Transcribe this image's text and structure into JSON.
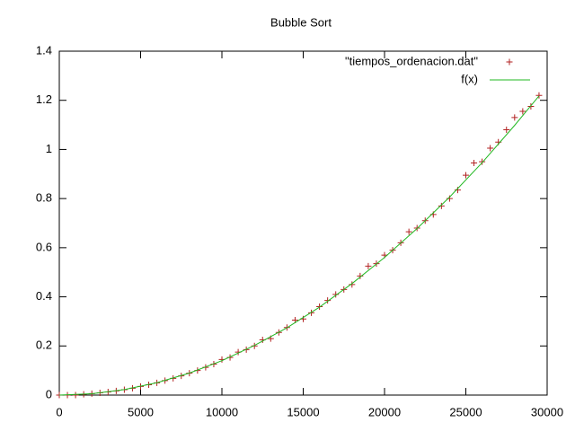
{
  "chart_data": {
    "type": "scatter",
    "title": "Bubble Sort",
    "xlim": [
      0,
      30000
    ],
    "ylim": [
      0,
      1.4
    ],
    "xticks": [
      0,
      5000,
      10000,
      15000,
      20000,
      25000,
      30000
    ],
    "yticks": [
      0,
      0.2,
      0.4,
      0.6,
      0.8,
      1,
      1.2,
      1.4
    ],
    "legend": "top-right",
    "series": [
      {
        "name": "\"tiempos_ordenacion.dat\"",
        "color": "#b22222",
        "style": "points",
        "x": [
          0,
          500,
          1000,
          1500,
          2000,
          2500,
          3000,
          3500,
          4000,
          4500,
          5000,
          5500,
          6000,
          6500,
          7000,
          7500,
          8000,
          8500,
          9000,
          9500,
          10000,
          10500,
          11000,
          11500,
          12000,
          12500,
          13000,
          13500,
          14000,
          14500,
          15000,
          15500,
          16000,
          16500,
          17000,
          17500,
          18000,
          18500,
          19000,
          19500,
          20000,
          20500,
          21000,
          21500,
          22000,
          22500,
          23000,
          23500,
          24000,
          24500,
          25000,
          25500,
          26000,
          26500,
          27000,
          27500,
          28000,
          28500,
          29000,
          29500
        ],
        "values": [
          0,
          0,
          0,
          0.003,
          0.006,
          0.009,
          0.013,
          0.017,
          0.022,
          0.028,
          0.035,
          0.042,
          0.05,
          0.059,
          0.068,
          0.078,
          0.089,
          0.1,
          0.113,
          0.126,
          0.145,
          0.153,
          0.175,
          0.185,
          0.2,
          0.225,
          0.23,
          0.255,
          0.275,
          0.305,
          0.31,
          0.335,
          0.36,
          0.385,
          0.41,
          0.43,
          0.45,
          0.485,
          0.525,
          0.535,
          0.57,
          0.59,
          0.62,
          0.665,
          0.68,
          0.71,
          0.735,
          0.77,
          0.8,
          0.835,
          0.895,
          0.945,
          0.95,
          1.005,
          1.03,
          1.08,
          1.13,
          1.155,
          1.175,
          1.22
        ]
      },
      {
        "name": "f(x)",
        "color": "#22b822",
        "style": "line",
        "x": [
          0,
          2000,
          4000,
          6000,
          8000,
          10000,
          12000,
          14000,
          16000,
          18000,
          20000,
          22000,
          24000,
          26000,
          28000,
          29500
        ],
        "values": [
          0,
          0.0056,
          0.0224,
          0.0504,
          0.0896,
          0.14,
          0.202,
          0.274,
          0.358,
          0.454,
          0.56,
          0.678,
          0.806,
          0.946,
          1.098,
          1.218
        ]
      }
    ]
  }
}
